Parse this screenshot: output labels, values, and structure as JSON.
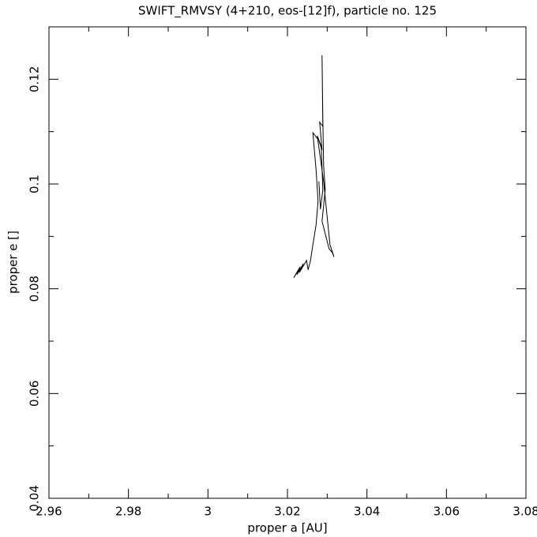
{
  "chart_data": {
    "type": "line",
    "title": "SWIFT_RMVSY (4+210, eos-[12]f), particle no. 125",
    "x_label": "proper a [AU]",
    "y_label": "proper e []",
    "xlim": [
      2.96,
      3.08
    ],
    "ylim": [
      0.04,
      0.13
    ],
    "xticks": [
      2.96,
      2.98,
      3,
      3.02,
      3.04,
      3.06,
      3.08
    ],
    "yticks": [
      0.04,
      0.06,
      0.08,
      0.1,
      0.12
    ],
    "xminorticks": [
      2.97,
      2.99,
      3.01,
      3.03,
      3.05,
      3.07
    ],
    "yminorticks": [
      0.05,
      0.07,
      0.09,
      0.11
    ],
    "color": "#000000",
    "x": [
      3.0216,
      3.0228,
      3.0218,
      3.0232,
      3.0224,
      3.024,
      3.023,
      3.0248,
      3.0252,
      3.0258,
      3.0264,
      3.0272,
      3.0277,
      3.0272,
      3.0264,
      3.0279,
      3.0287,
      3.0281,
      3.0289,
      3.0287,
      3.0289,
      3.0291,
      3.0295,
      3.0287,
      3.0297,
      3.0305,
      3.0313,
      3.0317,
      3.0307,
      3.0299,
      3.0291,
      3.0275,
      3.0285,
      3.0289,
      3.0283,
      3.0279
    ],
    "y": [
      0.0821,
      0.0836,
      0.0824,
      0.0842,
      0.0827,
      0.0848,
      0.0831,
      0.0854,
      0.0836,
      0.0854,
      0.0884,
      0.0922,
      0.0967,
      0.1027,
      0.1098,
      0.1083,
      0.1065,
      0.1118,
      0.111,
      0.1246,
      0.1125,
      0.1035,
      0.0989,
      0.0929,
      0.0899,
      0.0876,
      0.0869,
      0.0861,
      0.0884,
      0.0944,
      0.1005,
      0.1092,
      0.1072,
      0.0989,
      0.0952,
      0.1005
    ]
  }
}
